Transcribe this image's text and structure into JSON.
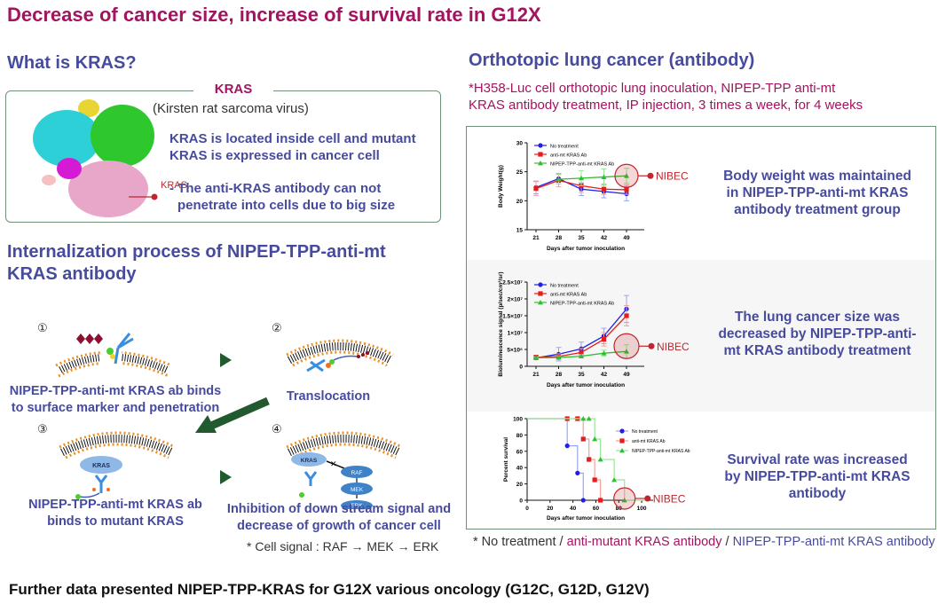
{
  "title": "Decrease of cancer size, increase of survival rate in G12X",
  "kras_section": {
    "heading": "What is KRAS?",
    "box_title": "KRAS",
    "box_subtitle": "(Kirsten rat sarcoma virus)",
    "desc_line1": "KRAS is located inside cell and mutant",
    "desc_line2": "KRAS is expressed in cancer cell",
    "note_line1": "- The anti-KRAS antibody can not",
    "note_line2": "penetrate into cells due to big size",
    "protein_label": "KRAS"
  },
  "internalization": {
    "heading_line1": "Internalization process of NIPEP-TPP-anti-mt",
    "heading_line2": "KRAS antibody",
    "steps": [
      {
        "num": "①",
        "caption_line1": "NIPEP-TPP-anti-mt KRAS ab binds",
        "caption_line2": "to surface marker and penetration"
      },
      {
        "num": "②",
        "caption_line1": "Translocation",
        "caption_line2": ""
      },
      {
        "num": "③",
        "caption_line1": "NIPEP-TPP-anti-mt KRAS ab",
        "caption_line2": "binds to mutant KRAS",
        "protein": "KRAS"
      },
      {
        "num": "④",
        "caption_line1": "Inhibition of down stream signal and",
        "caption_line2": "decrease of growth of cancer cell",
        "protein": "KRAS",
        "pathway": [
          "RAF",
          "MEK",
          "ERK"
        ]
      }
    ],
    "cell_signal_note": "* Cell signal : RAF → MEK → ERK"
  },
  "orthotopic": {
    "heading": "Orthotopic lung cancer (antibody)",
    "note_line1": "*H358-Luc cell orthotopic lung inoculation, NIPEP-TPP anti-mt",
    "note_line2": "KRAS antibody treatment, IP injection, 3 times a week, for 4 weeks",
    "results": [
      {
        "line1": "Body weight was maintained",
        "line2": "in NIPEP-TPP-anti-mt KRAS",
        "line3": "antibody treatment group"
      },
      {
        "line1": "The lung cancer size was",
        "line2": "decreased by NIPEP-TPP-anti-",
        "line3": "mt KRAS antibody treatment"
      },
      {
        "line1": "Survival rate was increased",
        "line2": "by NIPEP-TPP-anti-mt KRAS",
        "line3": "antibody"
      }
    ],
    "legend_note": {
      "prefix": "* No treatment / ",
      "middle": "anti-mutant KRAS antibody",
      "sep": " / ",
      "suffix": "NIPEP-TPP-anti-mt KRAS antibody"
    },
    "highlight_label": "NIBEC"
  },
  "colors": {
    "no_treatment": "#1f1fe6",
    "anti_mt": "#e61c1c",
    "nipep": "#2ec02e",
    "highlight": "#c0262b",
    "title": "#a3135f",
    "heading": "#474b9d"
  },
  "chart_data": [
    {
      "type": "line",
      "title": "",
      "xlabel": "Days after tumor inoculation",
      "ylabel": "Body Weight(g)",
      "x": [
        21,
        28,
        35,
        42,
        49
      ],
      "xticks": [
        "21",
        "28",
        "35",
        "42",
        "49"
      ],
      "ylim": [
        15,
        30
      ],
      "yticks": [
        "15",
        "20",
        "25",
        "30"
      ],
      "legend": "top-left",
      "series": [
        {
          "name": "No treatment",
          "values": [
            22.3,
            23.8,
            22.0,
            21.6,
            21.2
          ],
          "err": [
            1.1,
            0.9,
            1.1,
            1.1,
            1.2
          ]
        },
        {
          "name": "anti-mt KRAS Ab",
          "values": [
            22.1,
            23.5,
            22.6,
            22.0,
            21.9
          ],
          "err": [
            1.2,
            1.1,
            1.2,
            0.9,
            0.8
          ]
        },
        {
          "name": "NIPEP-TPP-anti-mt KRAS Ab",
          "values": [
            null,
            23.7,
            23.9,
            24.1,
            24.3
          ],
          "err": [
            0,
            0.8,
            1.3,
            1.4,
            1.3
          ]
        }
      ],
      "annotation": "NIBEC"
    },
    {
      "type": "line",
      "title": "",
      "xlabel": "Days after tumor inoculation",
      "ylabel": "Bioluminescence signal (p/sec/cm²/sr)",
      "x": [
        21,
        28,
        35,
        42,
        49
      ],
      "xticks": [
        "21",
        "28",
        "35",
        "42",
        "49"
      ],
      "ylim": [
        0,
        25000000
      ],
      "yticks": [
        "0",
        "5×10⁶",
        "1×10⁷",
        "1.5×10⁷",
        "2×10⁷",
        "2.5×10⁷"
      ],
      "legend": "top-left",
      "series": [
        {
          "name": "No treatment",
          "values": [
            2500000,
            3600000,
            5200000,
            9000000,
            17000000
          ],
          "err": [
            500000,
            2000000,
            2000000,
            2300000,
            4000000
          ]
        },
        {
          "name": "anti-mt KRAS Ab",
          "values": [
            2700000,
            2900000,
            4100000,
            8000000,
            15000000
          ],
          "err": [
            500000,
            800000,
            1200000,
            2000000,
            3000000
          ]
        },
        {
          "name": "NIPEP-TPP-anti-mt KRAS Ab",
          "values": [
            2500000,
            2600000,
            3000000,
            3900000,
            4400000
          ],
          "err": [
            300000,
            500000,
            500000,
            900000,
            2000000
          ]
        }
      ],
      "annotation": "NIBEC"
    },
    {
      "type": "line",
      "subtype": "kaplan-meier",
      "title": "",
      "xlabel": "Days after tumor inoculation",
      "ylabel": "Percent survival",
      "xlim": [
        0,
        110
      ],
      "xticks": [
        "0",
        "20",
        "40",
        "60",
        "80",
        "100"
      ],
      "ylim": [
        0,
        100
      ],
      "yticks": [
        "0",
        "20",
        "40",
        "60",
        "80",
        "100"
      ],
      "legend": "right",
      "series": [
        {
          "name": "No treatment",
          "steps": [
            [
              0,
              100
            ],
            [
              35,
              66.7
            ],
            [
              44,
              33.3
            ],
            [
              49,
              0
            ]
          ],
          "markers": [
            [
              35,
              66.7
            ],
            [
              44,
              33.3
            ],
            [
              49,
              0
            ]
          ]
        },
        {
          "name": "anti-mt KRAS Ab",
          "steps": [
            [
              0,
              100
            ],
            [
              49,
              75
            ],
            [
              54,
              50
            ],
            [
              59,
              25
            ],
            [
              64,
              0
            ]
          ],
          "markers": [
            [
              35,
              100
            ],
            [
              44,
              100
            ],
            [
              49,
              75
            ],
            [
              54,
              50
            ],
            [
              59,
              25
            ],
            [
              64,
              0
            ]
          ]
        },
        {
          "name": "NIPEP-TPP-anti-mt KRAS Ab",
          "steps": [
            [
              0,
              100
            ],
            [
              59,
              75
            ],
            [
              64,
              50
            ],
            [
              76,
              25
            ],
            [
              85,
              0
            ]
          ],
          "markers": [
            [
              49,
              100
            ],
            [
              54,
              100
            ],
            [
              59,
              75
            ],
            [
              64,
              50
            ],
            [
              76,
              25
            ],
            [
              85,
              0
            ]
          ]
        }
      ],
      "annotation": "NIBEC"
    }
  ],
  "footer": "Further data presented NIPEP-TPP-KRAS for G12X various oncology (G12C, G12D, G12V)"
}
